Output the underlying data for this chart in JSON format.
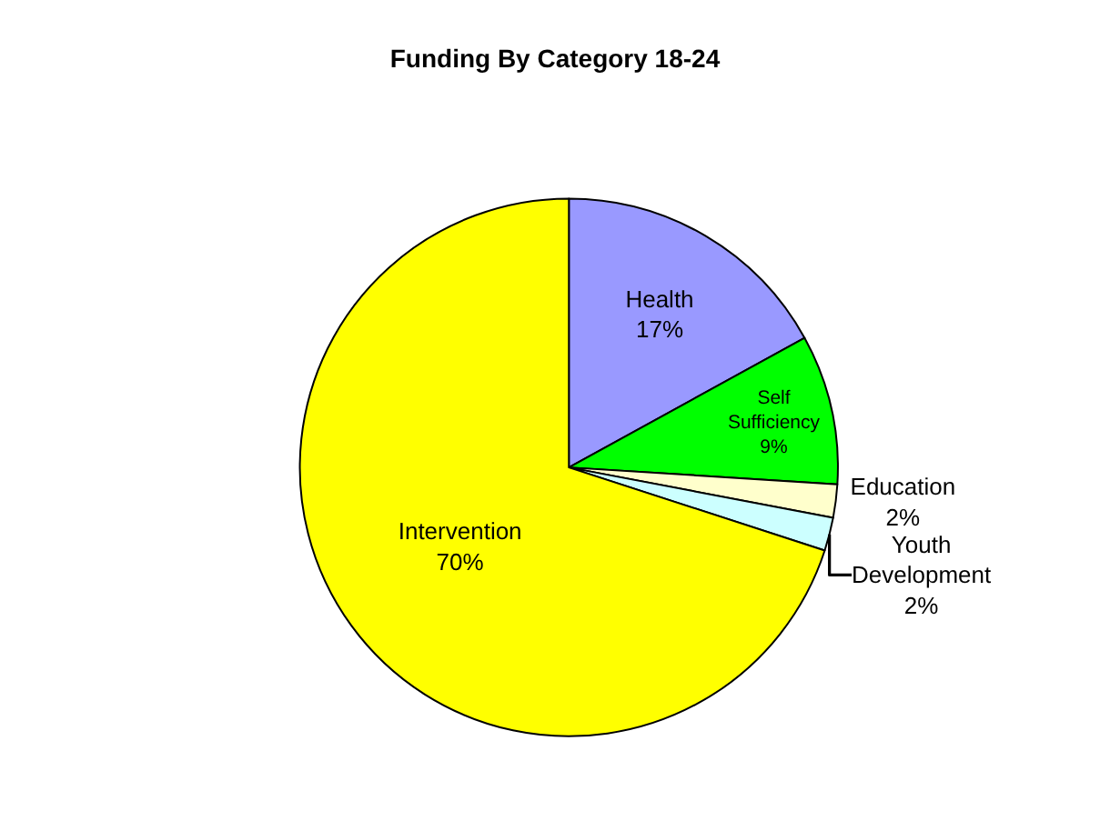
{
  "chart_data": {
    "type": "pie",
    "title": "Funding By Category 18-24",
    "categories": [
      "Health",
      "Self Sufficiency",
      "Education",
      "Youth Development",
      "Intervention"
    ],
    "values": [
      17,
      9,
      2,
      2,
      70
    ],
    "value_labels": [
      "17%",
      "9%",
      "2%",
      "2%",
      "70%"
    ],
    "colors": [
      "#9999ff",
      "#00ff00",
      "#ffffcc",
      "#ccffff",
      "#ffff00"
    ],
    "legend": false
  }
}
